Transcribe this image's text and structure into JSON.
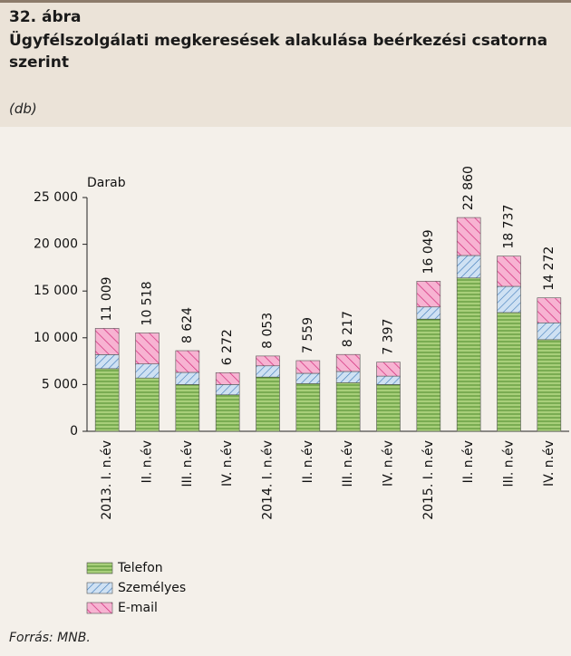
{
  "chart_data": {
    "type": "stacked_bar",
    "figure_number": "32. ábra",
    "title": "Ügyfélszolgálati megkeresések alakulása beérkezési csatorna szerint",
    "subtitle": "(db)",
    "y_label": "Darab",
    "source": "Forrás: MNB.",
    "categories": [
      "2013. I. n.év",
      "II. n.év",
      "III. n.év",
      "IV. n.év",
      "2014. I. n.év",
      "II. n.év",
      "III. n.év",
      "IV. n.év",
      "2015. I. n.év",
      "II. n.év",
      "III. n.év",
      "IV. n.év"
    ],
    "series": [
      {
        "name": "Telefon",
        "color": "#a8cf7a",
        "values": [
          6700,
          5700,
          5000,
          3900,
          5800,
          5100,
          5200,
          5000,
          12000,
          16400,
          12700,
          9800
        ]
      },
      {
        "name": "Személyes",
        "color": "#cfe1f3",
        "values": [
          1500,
          1500,
          1300,
          1100,
          1200,
          1100,
          1200,
          900,
          1300,
          2400,
          2800,
          1800
        ]
      },
      {
        "name": "E-mail",
        "color": "#f7b3d2",
        "values": [
          2809,
          3318,
          2324,
          1272,
          1053,
          1359,
          1817,
          1497,
          2749,
          4060,
          3237,
          2672
        ]
      }
    ],
    "totals": [
      11009,
      10518,
      8624,
      6272,
      8053,
      7559,
      8217,
      7397,
      16049,
      22860,
      18737,
      14272
    ],
    "total_labels": [
      "11 009",
      "10 518",
      "8 624",
      "6 272",
      "8 053",
      "7 559",
      "8 217",
      "7 397",
      "16 049",
      "22 860",
      "18 737",
      "14 272"
    ],
    "ylim": [
      0,
      25000
    ],
    "yticks": [
      0,
      {
        "value": 5000,
        "label": "5 000"
      },
      {
        "value": 10000,
        "label": "10 000"
      },
      {
        "value": 15000,
        "label": "15 000"
      },
      {
        "value": 20000,
        "label": "20 000"
      },
      {
        "value": 25000,
        "label": "25 000"
      }
    ]
  }
}
